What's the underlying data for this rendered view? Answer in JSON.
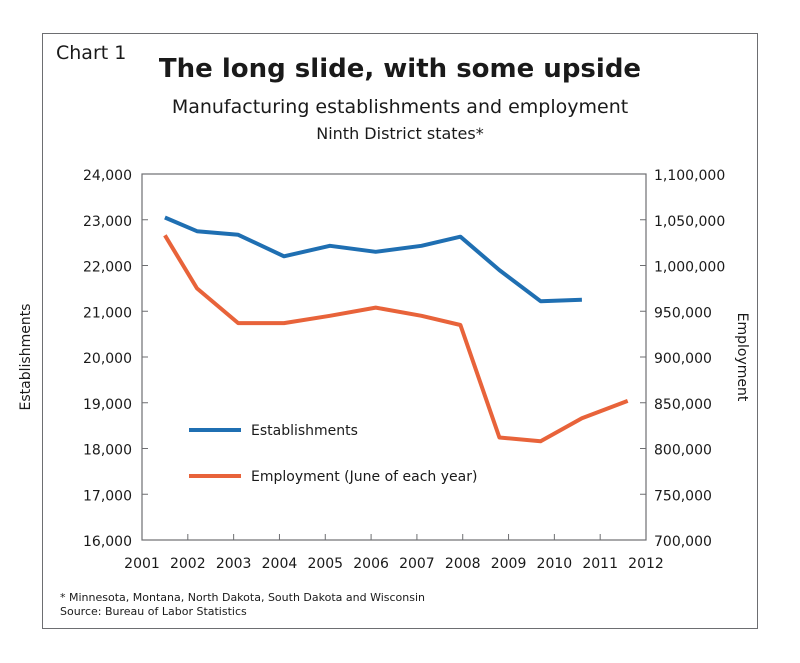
{
  "header": {
    "chart_label": "Chart 1",
    "title": "The long slide, with some upside",
    "subtitle": "Manufacturing establishments and employment",
    "subtitle2": "Ninth District states*"
  },
  "footer": {
    "footnote": "* Minnesota, Montana, North Dakota, South Dakota and Wisconsin",
    "source": "Source: Bureau of Labor Statistics"
  },
  "colors": {
    "establishments": "#1f6fb2",
    "employment": "#e8633a",
    "axis": "#6d6e71"
  },
  "chart_data": {
    "type": "line",
    "title": "The long slide, with some upside",
    "subtitle": "Manufacturing establishments and employment",
    "ylabel_left": "Establishments",
    "ylabel_right": "Employment",
    "xlim": [
      2001,
      2012
    ],
    "x_ticks": [
      "2001",
      "2002",
      "2003",
      "2004",
      "2005",
      "2006",
      "2007",
      "2008",
      "2009",
      "2010",
      "2011",
      "2012"
    ],
    "ylim_left": [
      16000,
      24000
    ],
    "y_ticks_left": [
      "16,000",
      "17,000",
      "18,000",
      "19,000",
      "20,000",
      "21,000",
      "22,000",
      "23,000",
      "24,000"
    ],
    "ylim_right": [
      700000,
      1100000
    ],
    "y_ticks_right": [
      "700,000",
      "750,000",
      "800,000",
      "850,000",
      "900,000",
      "950,000",
      "1,000,000",
      "1,050,000",
      "1,100,000"
    ],
    "grid": false,
    "legend": "lower-left",
    "series": [
      {
        "name": "Establishments",
        "axis": "left",
        "x": [
          2001.5,
          2002.2,
          2003.1,
          2004.1,
          2005.1,
          2006.1,
          2007.1,
          2007.95,
          2008.8,
          2009.7,
          2010.6
        ],
        "values": [
          23050,
          22750,
          22670,
          22200,
          22430,
          22300,
          22430,
          22630,
          21900,
          21220,
          21250
        ]
      },
      {
        "name": "Employment (June of each year)",
        "axis": "right",
        "x": [
          2001.5,
          2002.2,
          2003.1,
          2004.1,
          2005.1,
          2006.1,
          2007.1,
          2007.95,
          2008.8,
          2009.7,
          2010.6,
          2011.6
        ],
        "values": [
          1033000,
          975000,
          937000,
          937000,
          945000,
          954000,
          945000,
          935000,
          812000,
          808000,
          833000,
          852000
        ]
      }
    ]
  }
}
